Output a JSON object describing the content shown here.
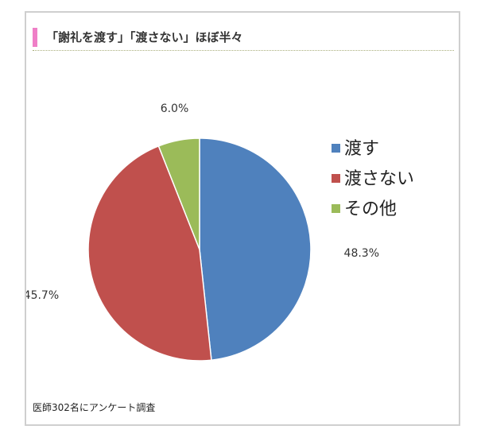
{
  "title": "「謝礼を渡す」「渡さない」ほぼ半々",
  "footnote": "医師302名にアンケート調査",
  "chart_data": {
    "type": "pie",
    "title": "「謝礼を渡す」「渡さない」ほぼ半々",
    "categories": [
      "渡す",
      "渡さない",
      "その他"
    ],
    "values": [
      48.3,
      45.7,
      6.0
    ],
    "value_labels": [
      "48.3%",
      "45.7%",
      "6.0%"
    ],
    "colors": [
      "#4f81bd",
      "#c0504d",
      "#9bbb59"
    ],
    "legend": "right",
    "start_angle": "12 o'clock, clockwise"
  }
}
